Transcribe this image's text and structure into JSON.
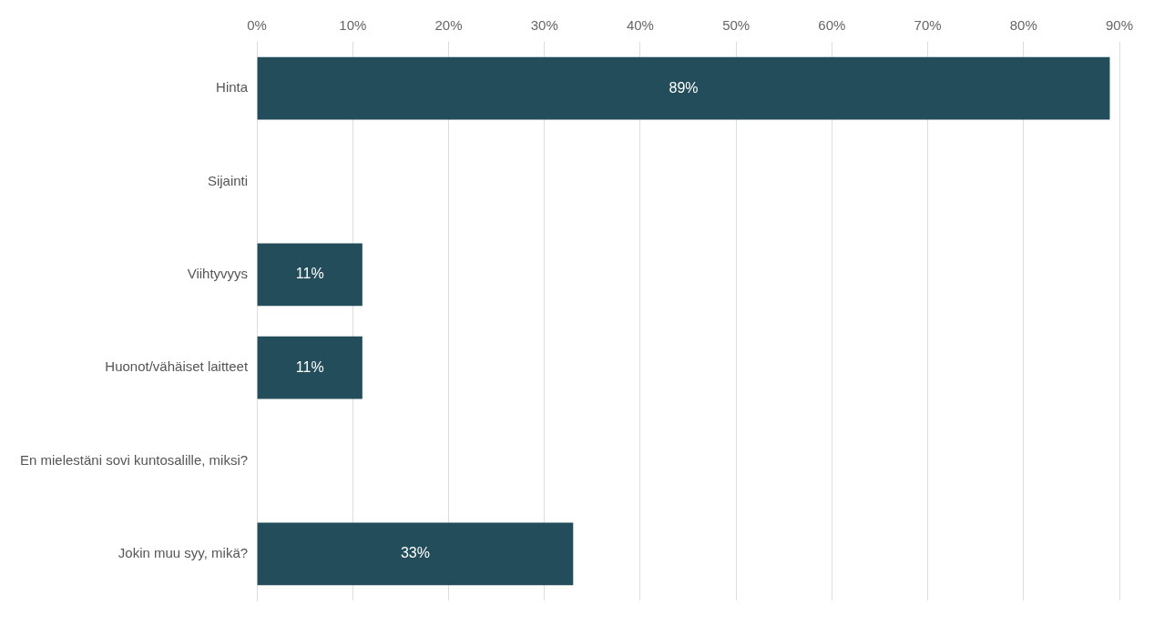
{
  "chart_data": {
    "type": "bar",
    "orientation": "horizontal",
    "categories": [
      "Hinta",
      "Sijainti",
      "Viihtyvyys",
      "Huonot/vähäiset laitteet",
      "En mielestäni sovi kuntosalille, miksi?",
      "Jokin muu syy, mikä?"
    ],
    "values": [
      89,
      0,
      11,
      11,
      0,
      33
    ],
    "value_labels": [
      "89%",
      null,
      "11%",
      "11%",
      null,
      "33%"
    ],
    "color": "#234d5a",
    "xlim": [
      0,
      90
    ],
    "xticks": [
      {
        "value": 0,
        "label": "0%"
      },
      {
        "value": 10,
        "label": "10%"
      },
      {
        "value": 20,
        "label": "20%"
      },
      {
        "value": 30,
        "label": "30%"
      },
      {
        "value": 40,
        "label": "40%"
      },
      {
        "value": 50,
        "label": "50%"
      },
      {
        "value": 60,
        "label": "60%"
      },
      {
        "value": 70,
        "label": "70%"
      },
      {
        "value": 80,
        "label": "80%"
      },
      {
        "value": 90,
        "label": "90%"
      }
    ],
    "grid": "x",
    "legend": false
  }
}
